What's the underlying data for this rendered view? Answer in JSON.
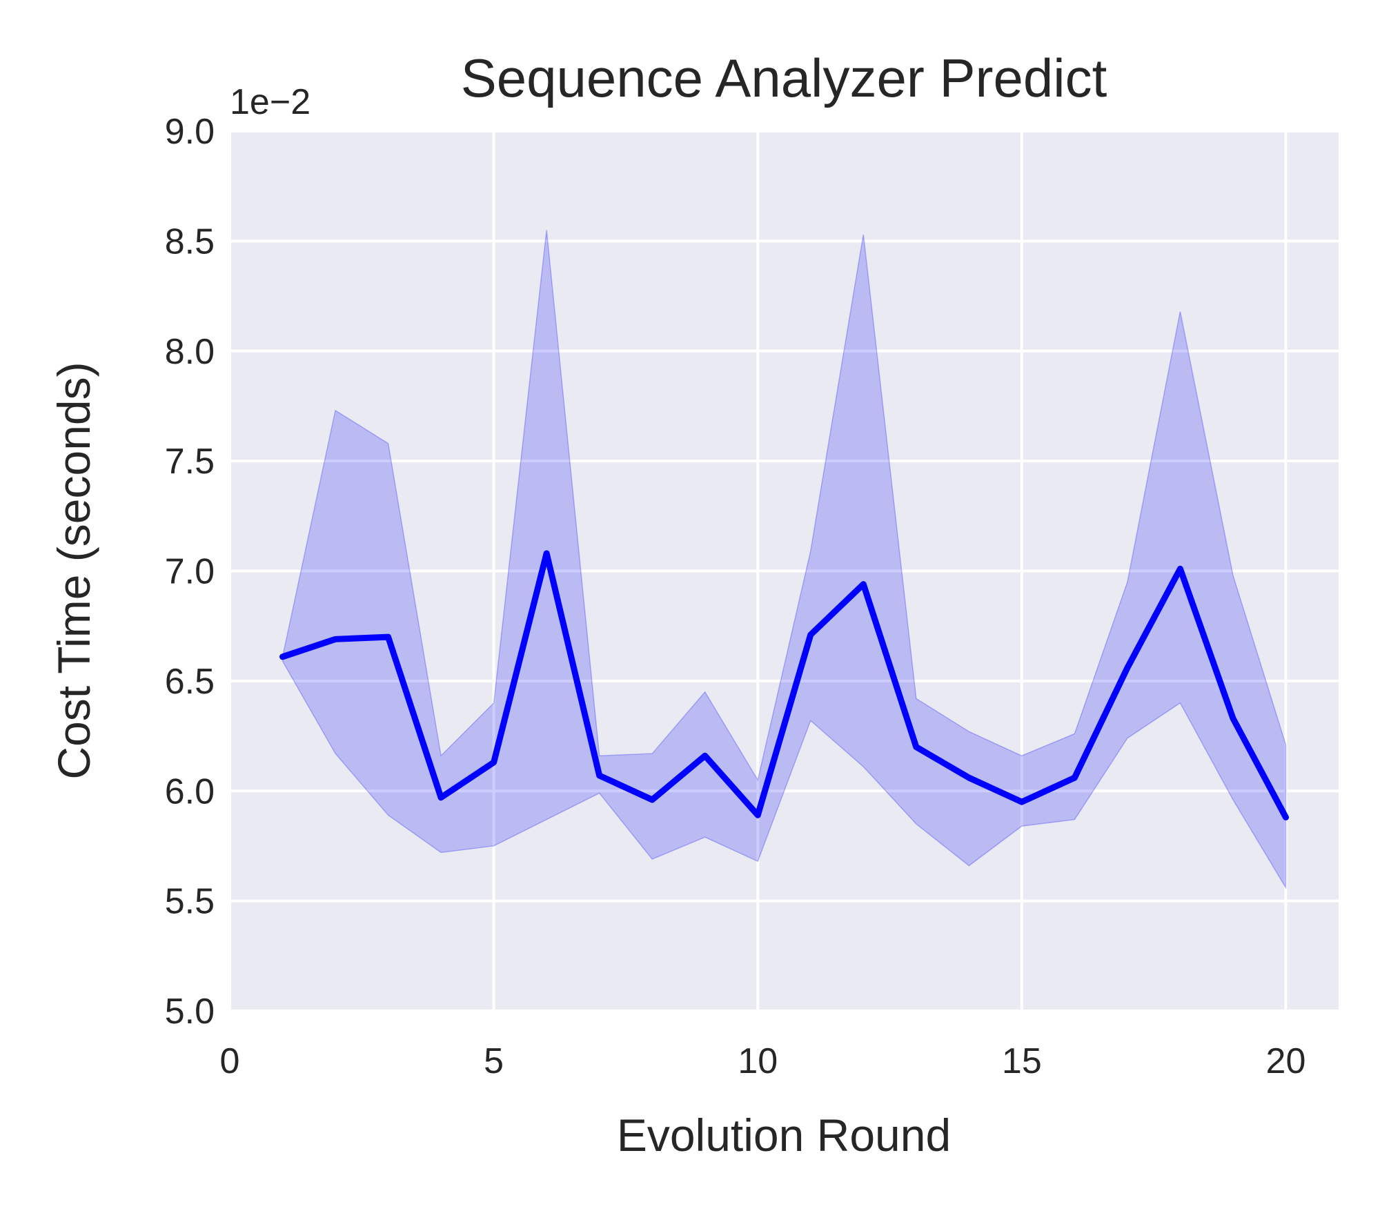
{
  "chart_data": {
    "type": "line",
    "title": "Sequence Analyzer Predict",
    "xlabel": "Evolution Round",
    "ylabel": "Cost Time (seconds)",
    "y_offset_label": "1e−2",
    "xlim": [
      0,
      21
    ],
    "ylim": [
      5.0,
      9.0
    ],
    "x_ticks": [
      0,
      5,
      10,
      15,
      20
    ],
    "x_tick_labels": [
      "0",
      "5",
      "10",
      "15",
      "20"
    ],
    "y_ticks": [
      5.0,
      5.5,
      6.0,
      6.5,
      7.0,
      7.5,
      8.0,
      8.5,
      9.0
    ],
    "y_tick_labels": [
      "5.0",
      "5.5",
      "6.0",
      "6.5",
      "7.0",
      "7.5",
      "8.0",
      "8.5",
      "9.0"
    ],
    "grid": true,
    "legend": "none",
    "colors": {
      "line": "#0000ff",
      "band": "#0000ff",
      "plot_bg": "#eaeaf2",
      "grid": "#ffffff"
    },
    "series": [
      {
        "x": [
          1,
          2,
          3,
          4,
          5,
          6,
          7,
          8,
          9,
          10,
          11,
          12,
          13,
          14,
          15,
          16,
          17,
          18,
          19,
          20
        ],
        "mean": [
          6.61,
          6.69,
          6.7,
          5.97,
          6.13,
          7.08,
          6.07,
          5.96,
          6.16,
          5.89,
          6.71,
          6.94,
          6.2,
          6.06,
          5.95,
          6.06,
          6.56,
          7.01,
          6.33,
          5.88
        ],
        "upper": [
          6.61,
          7.73,
          7.58,
          6.16,
          6.4,
          8.55,
          6.16,
          6.17,
          6.45,
          6.05,
          7.09,
          8.53,
          6.42,
          6.27,
          6.16,
          6.26,
          6.95,
          8.18,
          6.98,
          6.21
        ],
        "lower": [
          6.59,
          6.17,
          5.89,
          5.72,
          5.75,
          5.87,
          5.99,
          5.69,
          5.79,
          5.68,
          6.32,
          6.11,
          5.85,
          5.66,
          5.84,
          5.87,
          6.24,
          6.4,
          5.96,
          5.56
        ]
      }
    ]
  }
}
